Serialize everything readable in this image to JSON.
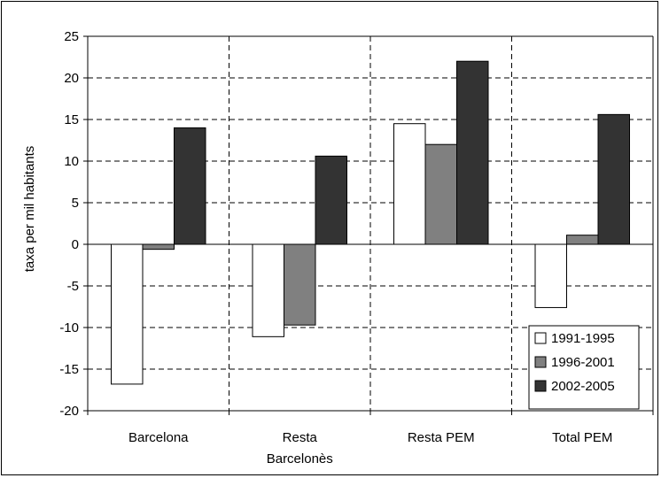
{
  "chart_data": {
    "type": "bar",
    "title": "",
    "xlabel": "",
    "ylabel": "taxa per mil habitants",
    "ylim": [
      -20,
      25
    ],
    "ytick_step": 5,
    "grid": true,
    "legend_position": "bottom-right",
    "categories": [
      "Barcelona",
      "Resta Barcelonès",
      "Resta PEM",
      "Total PEM"
    ],
    "category_lines": [
      [
        "Barcelona"
      ],
      [
        "Resta",
        "Barcelonès"
      ],
      [
        "Resta PEM"
      ],
      [
        "Total PEM"
      ]
    ],
    "series": [
      {
        "name": "1991-1995",
        "color": "#ffffff",
        "values": [
          -16.8,
          -11.1,
          14.5,
          -7.6
        ]
      },
      {
        "name": "1996-2001",
        "color": "#808080",
        "values": [
          -0.6,
          -9.7,
          12.0,
          1.1
        ]
      },
      {
        "name": "2002-2005",
        "color": "#333333",
        "values": [
          14.0,
          10.6,
          22.0,
          15.6
        ]
      }
    ]
  }
}
